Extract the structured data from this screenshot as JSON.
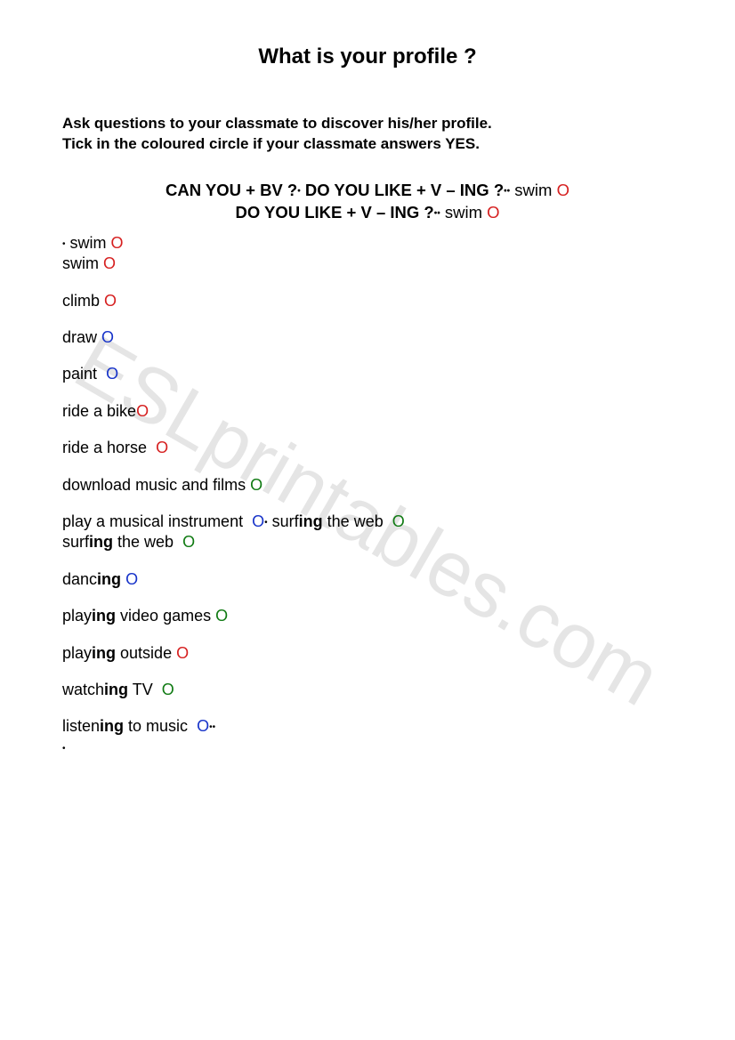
{
  "title": "What is your profile ?",
  "instructions_line1": "Ask questions to your classmate to discover his/her profile.",
  "instructions_line2": "Tick in the coloured circle if your classmate answers YES.",
  "formula": {
    "part1": "CAN YOU + BV ?",
    "part2": "DO YOU LIKE + V – ING ?",
    "swim_label": "swim",
    "line2": "DO YOU LIKE + V – ING ?"
  },
  "circle_glyph": "O",
  "bullet_glyph": "•",
  "colors": {
    "red": "#d62020",
    "blue": "#1733c9",
    "green": "#0f7a12",
    "text": "#000000",
    "background": "#ffffff",
    "watermark": "rgba(0,0,0,0.10)"
  },
  "items": {
    "swim1": "swim",
    "swim2": "swim",
    "climb": "climb",
    "draw": "draw",
    "paint": "paint",
    "ride_bike": "ride a bike",
    "ride_horse": "ride a horse",
    "download": "download music and films",
    "instrument": "play a musical instrument",
    "surfing_inline_pre": "surf",
    "surfing_inline_bold": "ing",
    "surfing_inline_post": " the web",
    "surfing_pre": "surf",
    "surfing_bold": "ing",
    "surfing_post": " the web",
    "dancing_pre": "danc",
    "dancing_bold": "ing",
    "playing_vg_pre": "play",
    "playing_vg_bold": "ing",
    "playing_vg_post": " video games",
    "playing_out_pre": "play",
    "playing_out_bold": "ing",
    "playing_out_post": " outside",
    "watching_pre": "watch",
    "watching_bold": "ing",
    "watching_post": " TV",
    "listening_pre": "listen",
    "listening_bold": "ing",
    "listening_post": " to music"
  },
  "watermark": "ESLprintables.com"
}
